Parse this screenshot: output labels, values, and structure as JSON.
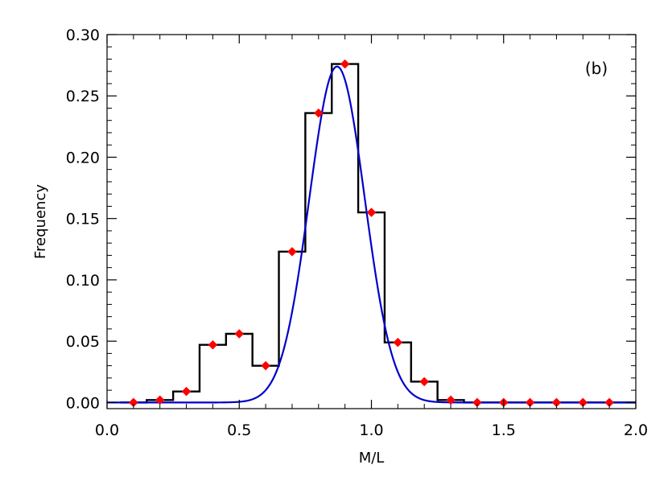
{
  "chart_data": {
    "type": "line",
    "panel_label": "(b)",
    "xlabel": "M/L",
    "ylabel": "Frequency",
    "xlim": [
      0.0,
      2.0
    ],
    "ylim": [
      -0.005,
      0.3
    ],
    "x_ticks": [
      {
        "value": 0.0,
        "label": "0.0"
      },
      {
        "value": 0.5,
        "label": "0.5"
      },
      {
        "value": 1.0,
        "label": "1.0"
      },
      {
        "value": 1.5,
        "label": "1.5"
      },
      {
        "value": 2.0,
        "label": "2.0"
      }
    ],
    "y_ticks": [
      {
        "value": 0.0,
        "label": "0.00"
      },
      {
        "value": 0.05,
        "label": "0.05"
      },
      {
        "value": 0.1,
        "label": "0.10"
      },
      {
        "value": 0.15,
        "label": "0.15"
      },
      {
        "value": 0.2,
        "label": "0.20"
      },
      {
        "value": 0.25,
        "label": "0.25"
      },
      {
        "value": 0.3,
        "label": "0.30"
      }
    ],
    "histogram": {
      "color": "#000000",
      "bin_width": 0.1,
      "bin_centers": [
        0.1,
        0.2,
        0.3,
        0.4,
        0.5,
        0.6,
        0.7,
        0.8,
        0.9,
        1.0,
        1.1,
        1.2,
        1.3,
        1.4,
        1.5,
        1.6,
        1.7,
        1.8,
        1.9
      ],
      "values": [
        0.0,
        0.002,
        0.009,
        0.047,
        0.056,
        0.03,
        0.123,
        0.236,
        0.276,
        0.155,
        0.049,
        0.017,
        0.002,
        0.0,
        0.0,
        0.0,
        0.0,
        0.0,
        0.0
      ]
    },
    "points": {
      "color": "#ff0000",
      "marker": "diamond",
      "x": [
        0.1,
        0.2,
        0.3,
        0.4,
        0.5,
        0.6,
        0.7,
        0.8,
        0.9,
        1.0,
        1.1,
        1.2,
        1.3,
        1.4,
        1.5,
        1.6,
        1.7,
        1.8,
        1.9
      ],
      "y": [
        0.0,
        0.002,
        0.009,
        0.047,
        0.056,
        0.03,
        0.123,
        0.236,
        0.276,
        0.155,
        0.049,
        0.017,
        0.002,
        0.0,
        0.0,
        0.0,
        0.0,
        0.0,
        0.0
      ]
    },
    "fit_curve": {
      "color": "#0000cc",
      "kind": "gaussian",
      "mean": 0.87,
      "sigma": 0.105,
      "amplitude": 0.274,
      "x_range": [
        0.0,
        2.0
      ]
    }
  }
}
